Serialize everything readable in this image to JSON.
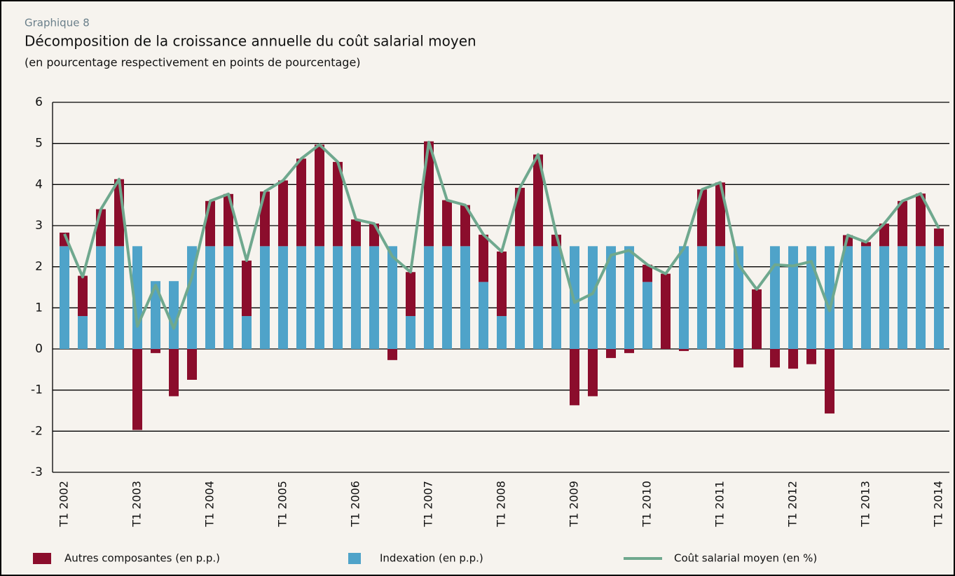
{
  "chart_data": {
    "type": "bar",
    "stacked": true,
    "label": "Graphique 8",
    "title": "Décomposition de la croissance annuelle du coût salarial moyen",
    "subtitle": "(en pourcentage respectivement en points de pourcentage)",
    "categories": [
      "T1 2002",
      null,
      null,
      null,
      "T1 2003",
      null,
      null,
      null,
      "T1 2004",
      null,
      null,
      null,
      "T1 2005",
      null,
      null,
      null,
      "T1 2006",
      null,
      null,
      null,
      "T1 2007",
      null,
      null,
      null,
      "T1 2008",
      null,
      null,
      null,
      "T1 2009",
      null,
      null,
      null,
      "T1 2010",
      null,
      null,
      null,
      "T1 2011",
      null,
      null,
      null,
      "T1 2012",
      null,
      null,
      null,
      "T1 2013",
      null,
      null,
      null,
      "T1 2014"
    ],
    "series": [
      {
        "name": "Autres composantes (en p.p.)",
        "type": "bar",
        "color": "#8b0d2c",
        "values": [
          0.33,
          0.98,
          0.9,
          1.63,
          -1.97,
          -0.1,
          -1.15,
          -0.75,
          1.1,
          1.27,
          1.35,
          1.33,
          1.6,
          2.13,
          2.47,
          2.05,
          0.65,
          0.55,
          -0.27,
          1.07,
          2.55,
          1.12,
          1.0,
          1.15,
          1.57,
          1.42,
          2.23,
          0.28,
          -1.37,
          -1.15,
          -0.22,
          -0.1,
          0.42,
          1.83,
          -0.05,
          1.38,
          1.55,
          -0.45,
          1.45,
          -0.45,
          -0.48,
          -0.37,
          -1.57,
          0.27,
          0.1,
          0.55,
          1.1,
          1.28,
          0.43
        ]
      },
      {
        "name": "Indexation (en p.p.)",
        "type": "bar",
        "color": "#4fa3c9",
        "values": [
          2.5,
          0.8,
          2.5,
          2.5,
          2.5,
          1.65,
          1.65,
          2.5,
          2.5,
          2.5,
          0.8,
          2.5,
          2.5,
          2.5,
          2.5,
          2.5,
          2.5,
          2.5,
          2.5,
          0.8,
          2.5,
          2.5,
          2.5,
          1.63,
          0.8,
          2.5,
          2.5,
          2.5,
          2.5,
          2.5,
          2.5,
          2.5,
          1.63,
          0,
          2.5,
          2.5,
          2.5,
          2.5,
          0,
          2.5,
          2.5,
          2.5,
          2.5,
          2.5,
          2.5,
          2.5,
          2.5,
          2.5,
          2.5
        ]
      },
      {
        "name": "Coût salarial moyen (en %)",
        "type": "line",
        "color": "#6fa88e",
        "values": [
          2.8,
          1.75,
          3.4,
          4.13,
          0.55,
          1.55,
          0.5,
          1.75,
          3.6,
          3.77,
          2.15,
          3.83,
          4.1,
          4.63,
          4.97,
          4.55,
          3.15,
          3.05,
          2.25,
          1.87,
          5.03,
          3.62,
          3.5,
          2.78,
          2.37,
          3.92,
          4.73,
          2.78,
          1.13,
          1.35,
          2.28,
          2.4,
          2.05,
          1.83,
          2.45,
          3.88,
          4.05,
          2.05,
          1.45,
          2.05,
          2.02,
          2.13,
          0.93,
          2.77,
          2.6,
          3.05,
          3.6,
          3.78,
          2.93
        ]
      }
    ],
    "ylim": [
      -3,
      6
    ],
    "yticks": [
      -3,
      -2,
      -1,
      0,
      1,
      2,
      3,
      4,
      5,
      6
    ],
    "grid": true,
    "legend": "bottom"
  }
}
